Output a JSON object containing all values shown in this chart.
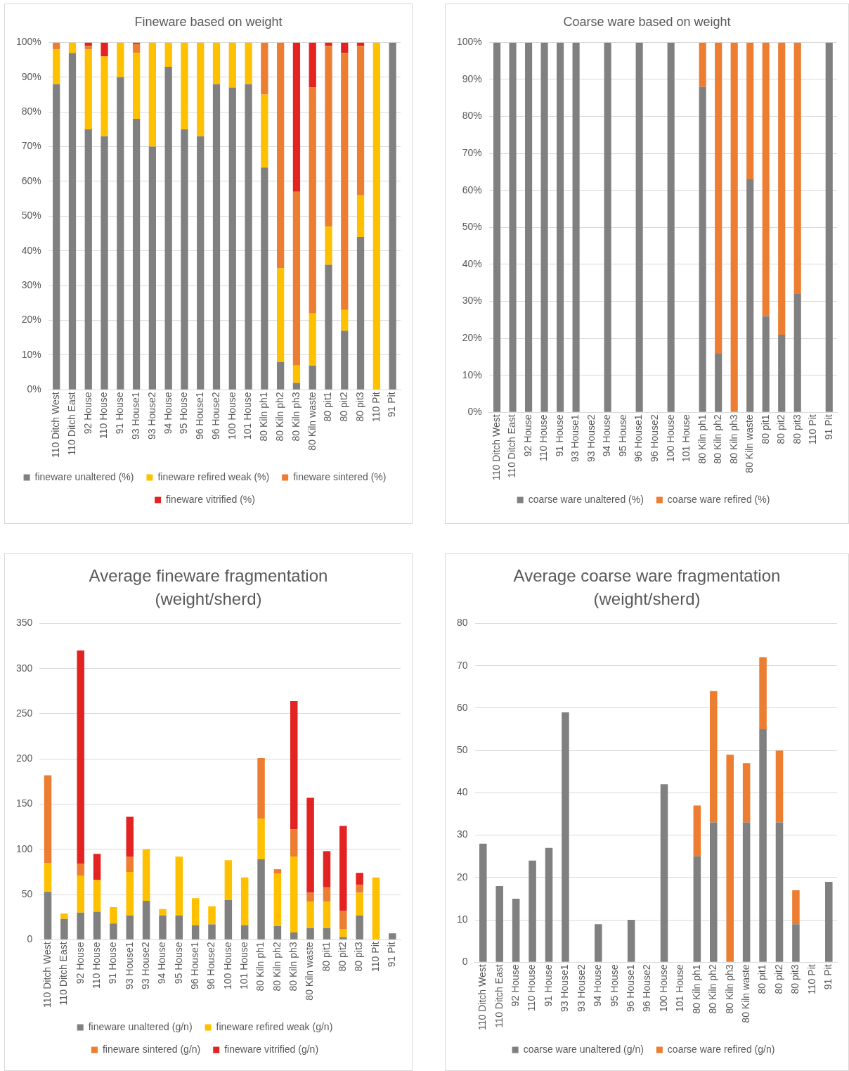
{
  "chart_data": [
    {
      "type": "bar",
      "stacked": true,
      "title": "Fineware based on weight",
      "categories": [
        "110 Ditch West",
        "110 Ditch East",
        "92 House",
        "110 House",
        "91 House",
        "93 House1",
        "93 House2",
        "94 House",
        "95 House",
        "96 House1",
        "96 House2",
        "100 House",
        "101 House",
        "80 Kiln ph1",
        "80 Kiln ph2",
        "80 Kiln ph3",
        "80 Kiln waste",
        "80 pit1",
        "80 pit2",
        "80 pit3",
        "110 Pit",
        "91 Pit"
      ],
      "series": [
        {
          "name": "fineware unaltered (%)",
          "color": "#808080",
          "values": [
            88,
            97,
            75,
            73,
            90,
            78,
            70,
            93,
            75,
            73,
            88,
            87,
            88,
            64,
            8,
            2,
            7,
            36,
            17,
            44,
            0,
            100
          ]
        },
        {
          "name": "fineware refired weak (%)",
          "color": "#ffc000",
          "values": [
            10,
            3,
            23,
            23,
            10,
            19,
            30,
            7,
            25,
            27,
            12,
            13,
            12,
            21,
            27,
            5,
            15,
            11,
            6,
            12,
            100,
            0
          ]
        },
        {
          "name": "fineware sintered (%)",
          "color": "#ed7d31",
          "values": [
            2,
            0,
            1,
            0,
            0,
            2.5,
            0,
            0,
            0,
            0,
            0,
            0,
            0,
            15,
            65,
            50,
            65,
            52,
            74,
            43,
            0,
            0
          ]
        },
        {
          "name": "fineware vitrified (%)",
          "color": "#e32322",
          "values": [
            0,
            0,
            1,
            4,
            0,
            0.5,
            0,
            0,
            0,
            0,
            0,
            0,
            0,
            0,
            0,
            43,
            13,
            1,
            3,
            1,
            0,
            0
          ]
        }
      ],
      "ylim": [
        0,
        100
      ],
      "yticks": [
        {
          "value": 0,
          "label": "0%"
        },
        {
          "value": 10,
          "label": "10%"
        },
        {
          "value": 20,
          "label": "20%"
        },
        {
          "value": 30,
          "label": "30%"
        },
        {
          "value": 40,
          "label": "40%"
        },
        {
          "value": 50,
          "label": "50%"
        },
        {
          "value": 60,
          "label": "60%"
        },
        {
          "value": 70,
          "label": "70%"
        },
        {
          "value": 80,
          "label": "80%"
        },
        {
          "value": 90,
          "label": "90%"
        },
        {
          "value": 100,
          "label": "100%"
        }
      ],
      "grid": "y",
      "legend": "bottom"
    },
    {
      "type": "bar",
      "stacked": true,
      "title": "Coarse ware based on weight",
      "categories": [
        "110 Ditch West",
        "110 Ditch East",
        "92 House",
        "110 House",
        "91 House",
        "93 House1",
        "93 House2",
        "94 House",
        "95 House",
        "96 House1",
        "96 House2",
        "100 House",
        "101 House",
        "80 Kiln ph1",
        "80 Kiln ph2",
        "80 Kiln ph3",
        "80 Kiln waste",
        "80 pit1",
        "80 pit2",
        "80 pit3",
        "110 Pit",
        "91 Pit"
      ],
      "series": [
        {
          "name": "coarse ware unaltered (%)",
          "color": "#808080",
          "values": [
            100,
            100,
            100,
            100,
            100,
            100,
            null,
            100,
            null,
            100,
            null,
            100,
            null,
            88,
            16,
            0,
            63,
            26,
            21,
            32,
            null,
            100
          ]
        },
        {
          "name": "coarse ware refired (%)",
          "color": "#ed7d31",
          "values": [
            0,
            0,
            0,
            0,
            0,
            0,
            null,
            0,
            null,
            0,
            null,
            0,
            null,
            12,
            84,
            100,
            37,
            74,
            79,
            68,
            null,
            0
          ]
        }
      ],
      "ylim": [
        0,
        100
      ],
      "yticks": [
        {
          "value": 0,
          "label": "0%"
        },
        {
          "value": 10,
          "label": "10%"
        },
        {
          "value": 20,
          "label": "20%"
        },
        {
          "value": 30,
          "label": "30%"
        },
        {
          "value": 40,
          "label": "40%"
        },
        {
          "value": 50,
          "label": "50%"
        },
        {
          "value": 60,
          "label": "60%"
        },
        {
          "value": 70,
          "label": "70%"
        },
        {
          "value": 80,
          "label": "80%"
        },
        {
          "value": 90,
          "label": "90%"
        },
        {
          "value": 100,
          "label": "100%"
        }
      ],
      "grid": "y",
      "legend": "bottom"
    },
    {
      "type": "bar",
      "stacked": true,
      "title": "Average fineware fragmentation (weight/sherd)",
      "categories": [
        "110 Ditch West",
        "110 Ditch East",
        "92 House",
        "110 House",
        "91 House",
        "93 House1",
        "93 House2",
        "94 House",
        "95 House",
        "96 House1",
        "96 House2",
        "100 House",
        "101 House",
        "80 Kiln ph1",
        "80 Kiln ph2",
        "80 Kiln ph3",
        "80 Kiln waste",
        "80 pit1",
        "80 pit2",
        "80 pit3",
        "110 Pit",
        "91 Pit"
      ],
      "series": [
        {
          "name": "fineware unaltered (g/n)",
          "color": "#808080",
          "values": [
            53,
            23,
            30,
            31,
            18,
            27,
            43,
            27,
            27,
            16,
            17,
            44,
            16,
            89,
            15,
            8,
            13,
            13,
            3,
            27,
            0,
            7
          ]
        },
        {
          "name": "fineware refired weak (g/n)",
          "color": "#ffc000",
          "values": [
            32,
            6,
            41,
            35,
            18,
            48,
            57,
            7,
            65,
            30,
            20,
            44,
            53,
            45,
            58,
            84,
            29,
            29,
            9,
            25,
            69,
            0
          ]
        },
        {
          "name": "fineware sintered (g/n)",
          "color": "#ed7d31",
          "values": [
            97,
            0,
            13,
            0,
            0,
            17,
            0,
            0,
            0,
            0,
            0,
            0,
            0,
            67,
            5,
            30,
            10,
            16,
            20,
            9,
            0,
            0
          ]
        },
        {
          "name": "fineware vitrified (g/n)",
          "color": "#e32322",
          "values": [
            0,
            0,
            236,
            29,
            0,
            44,
            0,
            0,
            0,
            0,
            0,
            0,
            0,
            0,
            0,
            142,
            105,
            40,
            94,
            13,
            0,
            0
          ]
        }
      ],
      "ylim": [
        0,
        350
      ],
      "yticks": [
        0,
        50,
        100,
        150,
        200,
        250,
        300,
        350
      ],
      "grid": "y",
      "legend": "bottom"
    },
    {
      "type": "bar",
      "stacked": true,
      "title": "Average coarse ware fragmentation (weight/sherd)",
      "categories": [
        "110 Ditch West",
        "110 Ditch East",
        "92 House",
        "110 House",
        "91 House",
        "93 House1",
        "93 House2",
        "94 House",
        "95 House",
        "96 House1",
        "96 House2",
        "100 House",
        "101 House",
        "80 Kiln ph1",
        "80 Kiln ph2",
        "80 Kiln ph3",
        "80 Kiln waste",
        "80 pit1",
        "80 pit2",
        "80 pit3",
        "110 Pit",
        "91 Pit"
      ],
      "series": [
        {
          "name": "coarse ware unaltered (g/n)",
          "color": "#808080",
          "values": [
            28,
            18,
            15,
            24,
            27,
            59,
            null,
            9,
            null,
            10,
            null,
            42,
            null,
            25,
            33,
            0,
            33,
            55,
            33,
            9,
            null,
            19
          ]
        },
        {
          "name": "coarse ware refired (g/n)",
          "color": "#ed7d31",
          "values": [
            0,
            0,
            0,
            0,
            0,
            0,
            null,
            0,
            null,
            0,
            null,
            0,
            null,
            12,
            31,
            49,
            14,
            17,
            17,
            8,
            null,
            0
          ]
        }
      ],
      "ylim": [
        0,
        80
      ],
      "yticks": [
        0,
        10,
        20,
        30,
        40,
        50,
        60,
        70,
        80
      ],
      "grid": "y",
      "legend": "bottom"
    }
  ]
}
